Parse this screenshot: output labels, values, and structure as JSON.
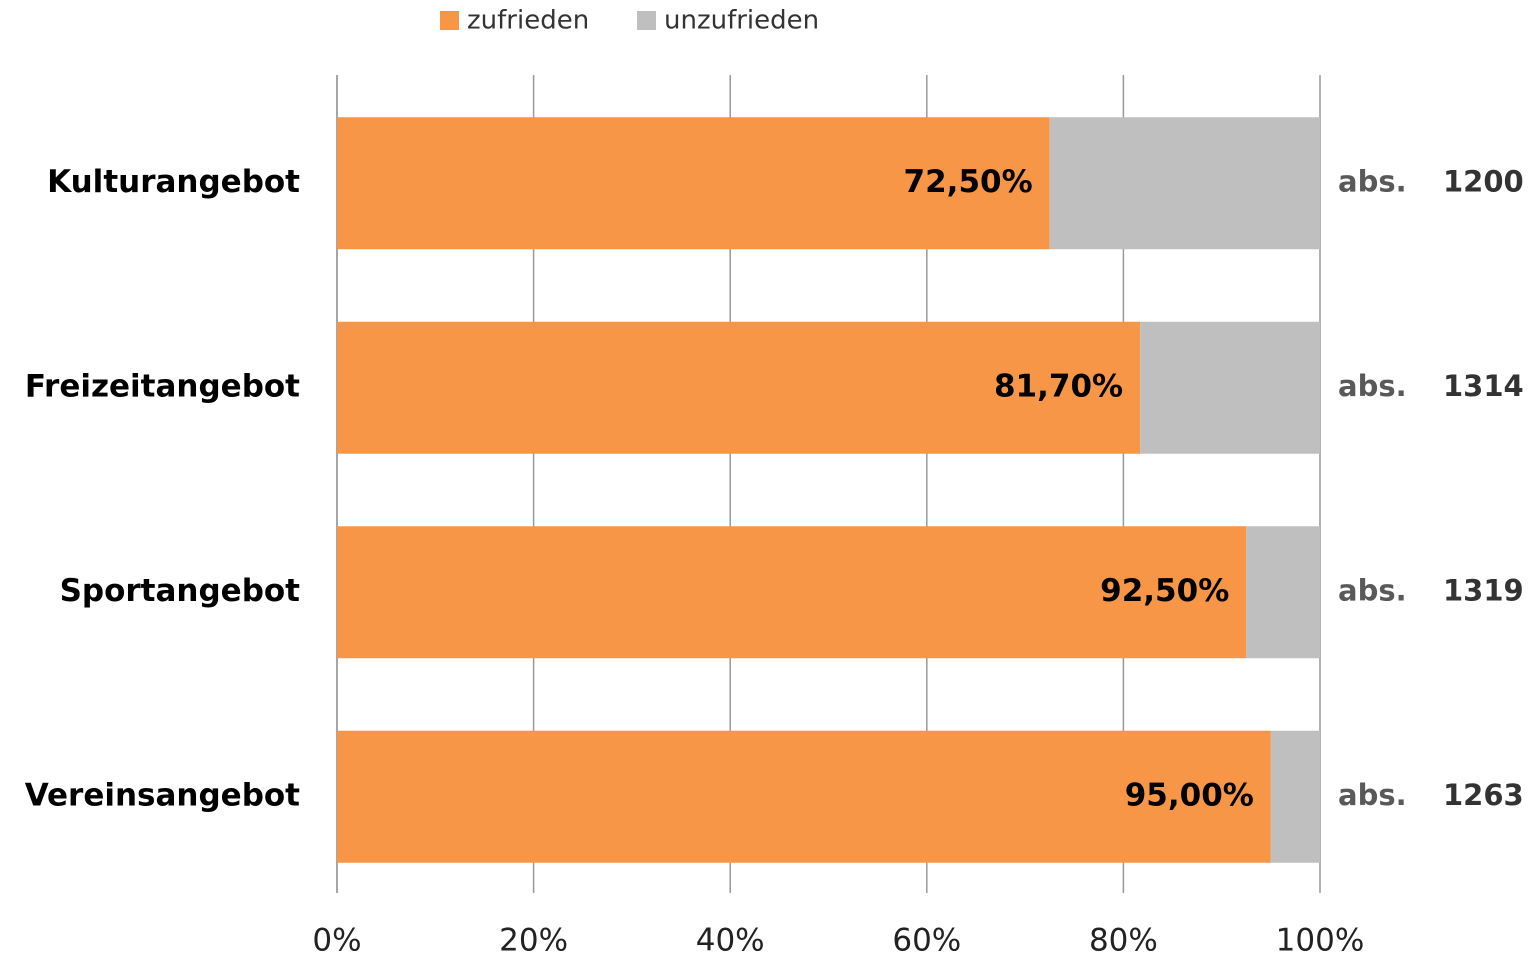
{
  "chart_data": {
    "type": "stacked_barh",
    "categories": [
      "Kulturangebot",
      "Freizeitangebot",
      "Sportangebot",
      "Vereinsangebot"
    ],
    "series": [
      {
        "name": "zufrieden",
        "color": "#f79646",
        "values": [
          72.5,
          81.7,
          92.5,
          95.0
        ],
        "value_labels": [
          "72,50%",
          "81,70%",
          "92,50%",
          "95,00%"
        ]
      },
      {
        "name": "unzufrieden",
        "color": "#bfbfbf",
        "values": [
          27.5,
          18.3,
          7.5,
          5.0
        ]
      }
    ],
    "abs_label": "abs.",
    "abs_counts": [
      1200,
      1314,
      1319,
      1263
    ],
    "xlim": [
      0,
      100
    ],
    "xticks": [
      {
        "value": 0,
        "label": "0%"
      },
      {
        "value": 20,
        "label": "20%"
      },
      {
        "value": 40,
        "label": "40%"
      },
      {
        "value": 60,
        "label": "60%"
      },
      {
        "value": 80,
        "label": "80%"
      },
      {
        "value": 100,
        "label": "100%"
      }
    ],
    "grid": true,
    "legend": "top"
  }
}
